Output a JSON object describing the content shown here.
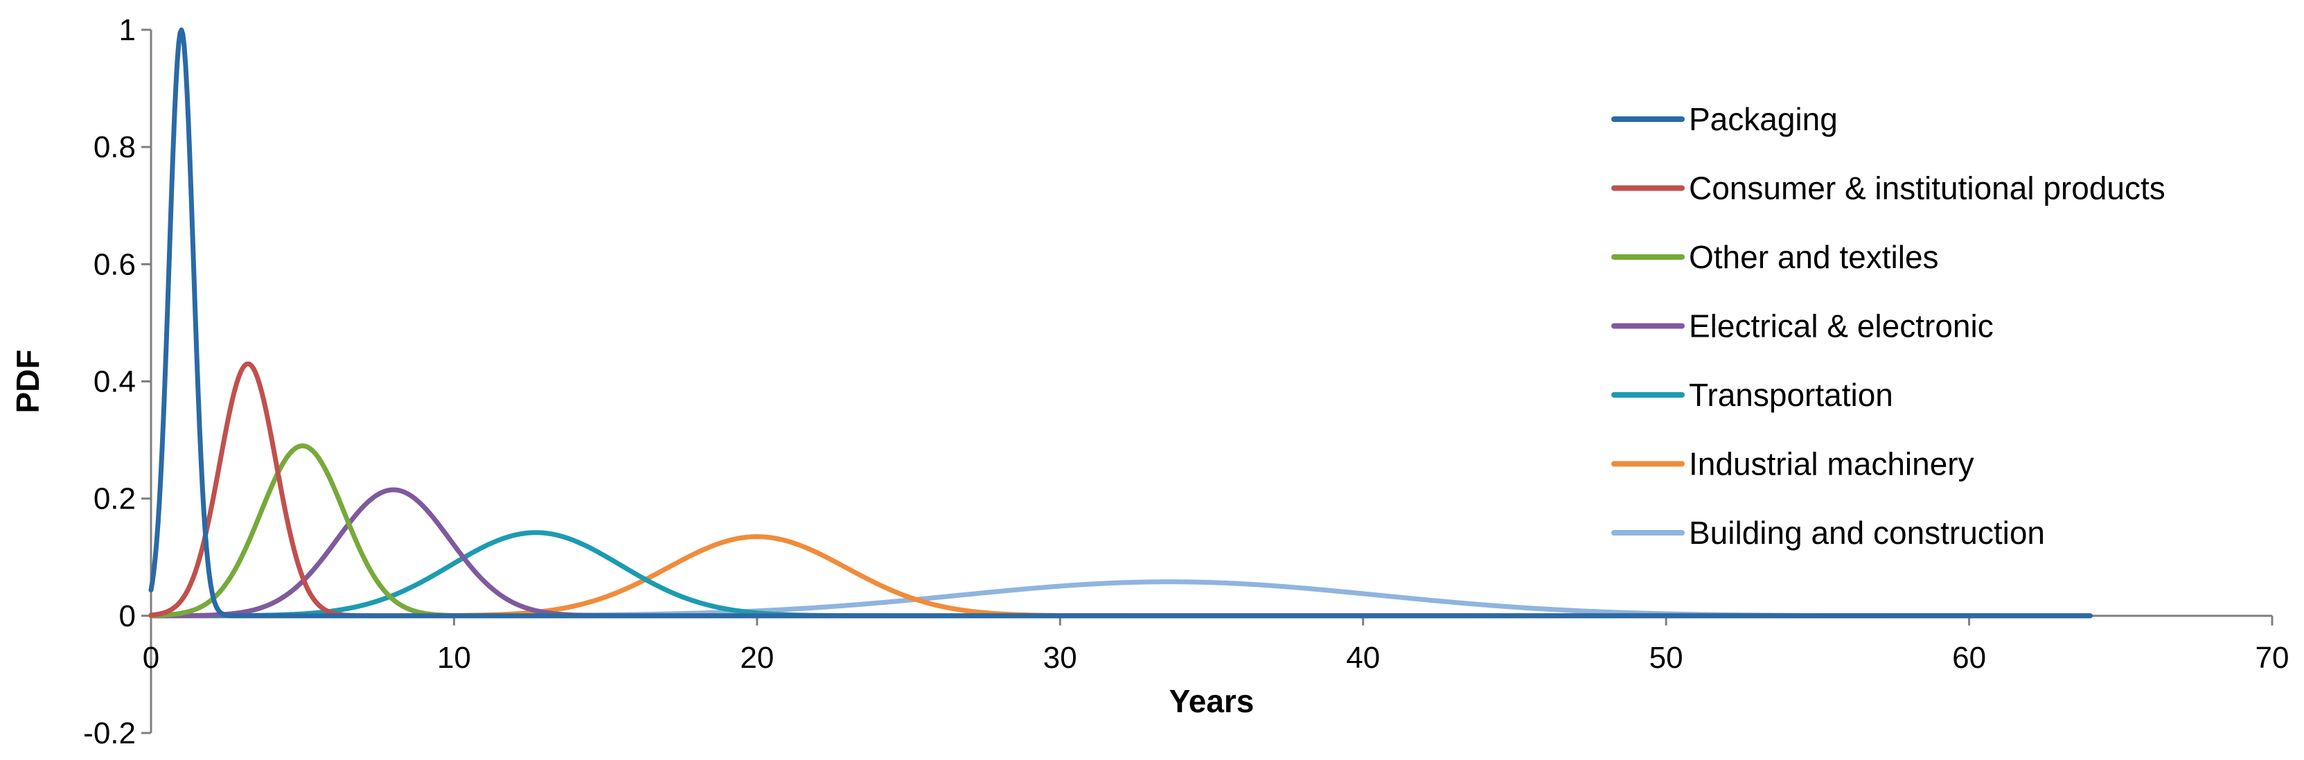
{
  "chart_data": {
    "type": "line",
    "xlabel": "Years",
    "ylabel": "PDF",
    "xlim": [
      0,
      70
    ],
    "ylim": [
      -0.2,
      1
    ],
    "x_ticks": [
      "0",
      "10",
      "20",
      "30",
      "40",
      "50",
      "60",
      "70"
    ],
    "y_ticks": [
      "-0.2",
      "0",
      "0.2",
      "0.4",
      "0.6",
      "0.8",
      "1"
    ],
    "grid": false,
    "legend_position": "top-right",
    "x_range_plotted": [
      0,
      64
    ],
    "series": [
      {
        "name": "Packaging",
        "color": "#2a6aa6",
        "peak_x": 1,
        "peak_y": 1.0,
        "sigma": 0.4
      },
      {
        "name": "Consumer & institutional products",
        "color": "#c0504d",
        "peak_x": 3.2,
        "peak_y": 0.43,
        "sigma": 0.93
      },
      {
        "name": "Other and textiles",
        "color": "#77a93a",
        "peak_x": 5,
        "peak_y": 0.29,
        "sigma": 1.38
      },
      {
        "name": "Electrical & electronic",
        "color": "#7f5a9e",
        "peak_x": 8,
        "peak_y": 0.215,
        "sigma": 1.86
      },
      {
        "name": "Transportation",
        "color": "#1c9bb0",
        "peak_x": 12.7,
        "peak_y": 0.142,
        "sigma": 2.81
      },
      {
        "name": "Industrial machinery",
        "color": "#f08c3a",
        "peak_x": 20,
        "peak_y": 0.135,
        "sigma": 2.95
      },
      {
        "name": "Building and construction",
        "color": "#8fb4de",
        "peak_x": 33.6,
        "peak_y": 0.058,
        "sigma": 6.9
      }
    ]
  }
}
